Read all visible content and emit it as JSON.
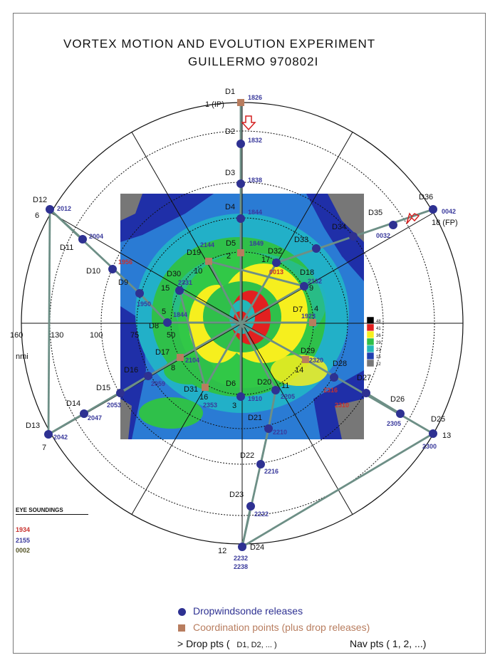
{
  "title": {
    "line1": "VORTEX MOTION AND EVOLUTION EXPERIMENT",
    "line2": "GUILLERMO 970802I"
  },
  "range_labels": [
    {
      "text": "160"
    },
    {
      "text": "130"
    },
    {
      "text": "100"
    },
    {
      "text": "75"
    },
    {
      "text": "50"
    },
    {
      "text": "nmi"
    }
  ],
  "radar_scale": [
    "48",
    "41",
    "36",
    "29",
    "21",
    "15",
    "12"
  ],
  "colors": {
    "track": "#6d8f86",
    "drop": "#2e3192",
    "coord": "#b87d5f",
    "time_blue": "#3a3a9c",
    "time_red": "#c8322f",
    "time_olive": "#545426",
    "arrow": "#d42020"
  },
  "points": [
    {
      "id": "D1",
      "nav": "1 (IP)",
      "time": "1826",
      "marker": "coord"
    },
    {
      "id": "D2",
      "nav": "",
      "time": "1832",
      "marker": "drop"
    },
    {
      "id": "D3",
      "nav": "",
      "time": "1838",
      "marker": "drop"
    },
    {
      "id": "D4",
      "nav": "",
      "time": "1844",
      "marker": "drop"
    },
    {
      "id": "D5",
      "nav": "2",
      "time": "1849",
      "marker": "coord"
    },
    {
      "id": "D6",
      "nav": "3",
      "time": "1910",
      "marker": "drop"
    },
    {
      "id": "D7",
      "nav": "4",
      "time": "1923",
      "marker": "coord"
    },
    {
      "id": "D8",
      "nav": "5",
      "time": "1844",
      "marker": "drop"
    },
    {
      "id": "D9",
      "nav": "",
      "time": "1950",
      "marker": "drop"
    },
    {
      "id": "D10",
      "nav": "",
      "time": "1956",
      "marker": "drop"
    },
    {
      "id": "D11",
      "nav": "",
      "time": "2004",
      "marker": "drop"
    },
    {
      "id": "D12",
      "nav": "6",
      "time": "2012",
      "marker": "drop"
    },
    {
      "id": "D13",
      "nav": "7",
      "time": "2042",
      "marker": "drop"
    },
    {
      "id": "D14",
      "nav": "",
      "time": "2047",
      "marker": "drop"
    },
    {
      "id": "D15",
      "nav": "",
      "time": "2053",
      "marker": "drop"
    },
    {
      "id": "D16",
      "nav": "",
      "time": "2059",
      "marker": "drop"
    },
    {
      "id": "D17",
      "nav": "8",
      "time": "2104",
      "marker": "coord"
    },
    {
      "id": "D18",
      "nav": "9",
      "time": "2132",
      "marker": "drop"
    },
    {
      "id": "D19",
      "nav": "10",
      "time": "2144",
      "marker": "coord"
    },
    {
      "id": "D20",
      "nav": "11",
      "time": "2205",
      "marker": "drop"
    },
    {
      "id": "D21",
      "nav": "",
      "time": "2210",
      "marker": "drop"
    },
    {
      "id": "D22",
      "nav": "",
      "time": "2216",
      "marker": "drop"
    },
    {
      "id": "D23",
      "nav": "",
      "time": "2222",
      "marker": "drop"
    },
    {
      "id": "D24",
      "nav": "12",
      "time": "2232",
      "time2": "2238",
      "marker": "drop"
    },
    {
      "id": "D25",
      "nav": "13",
      "time": "2300",
      "marker": "drop"
    },
    {
      "id": "D26",
      "nav": "",
      "time": "2305",
      "marker": "drop"
    },
    {
      "id": "D27",
      "nav": "",
      "time": "2310",
      "marker": "drop"
    },
    {
      "id": "D28",
      "nav": "",
      "time": "2316",
      "marker": "drop"
    },
    {
      "id": "D29",
      "nav": "14",
      "time": "2320",
      "marker": "coord"
    },
    {
      "id": "D30",
      "nav": "15",
      "time": "2331",
      "marker": "drop"
    },
    {
      "id": "D31",
      "nav": "16",
      "time": "2353",
      "marker": "coord"
    },
    {
      "id": "D32",
      "nav": "17",
      "time": "0013",
      "marker": "drop"
    },
    {
      "id": "D33",
      "nav": "",
      "time": "",
      "marker": "drop"
    },
    {
      "id": "D34",
      "nav": "",
      "time": "",
      "marker": "drop"
    },
    {
      "id": "D35",
      "nav": "",
      "time": "0032",
      "marker": "drop"
    },
    {
      "id": "D36",
      "nav": "18 (FP)",
      "time": "0042",
      "marker": "drop"
    }
  ],
  "eye_soundings": {
    "heading": "EYE SOUNDINGS",
    "times": [
      "1934",
      "2155",
      "0002"
    ]
  },
  "legend": {
    "drop_label": "Dropwindsonde releases",
    "coord_label": "Coordination points (plus drop releases)",
    "drop_pts_label": ">  Drop pts (",
    "drop_pts_example": "D1, D2, ... )",
    "nav_pts_label": "Nav pts (  1,  2,  ...)"
  }
}
